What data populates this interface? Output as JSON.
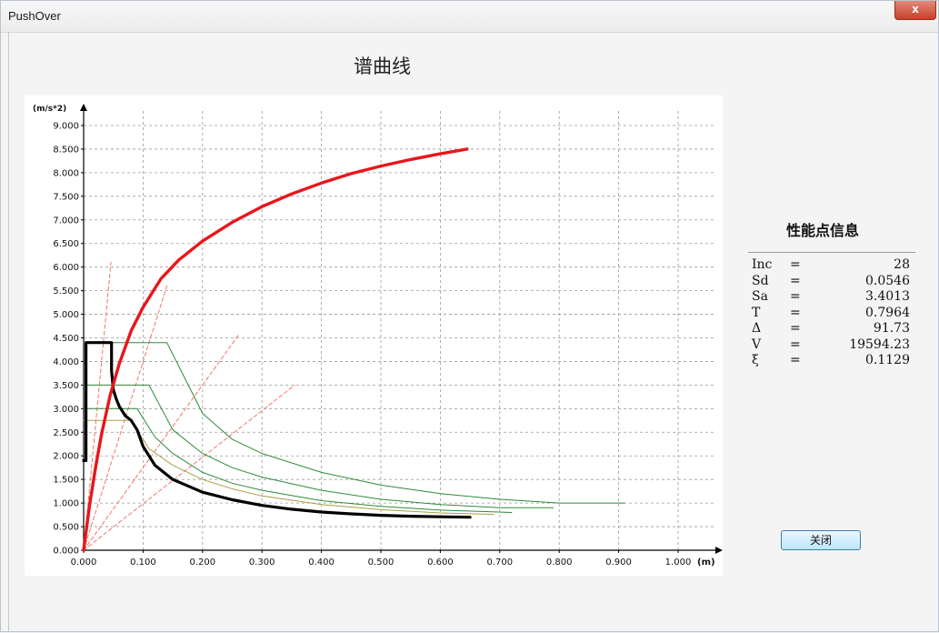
{
  "window": {
    "title": "PushOver",
    "close_glyph": "x"
  },
  "chart_title": "谱曲线",
  "info_panel": {
    "title": "性能点信息",
    "rows": [
      {
        "label": "Inc",
        "eq": "=",
        "value": "28"
      },
      {
        "label": "Sd",
        "eq": "=",
        "value": "0.0546"
      },
      {
        "label": "Sa",
        "eq": "=",
        "value": "3.4013"
      },
      {
        "label": "T",
        "eq": "=",
        "value": "0.7964"
      },
      {
        "label": "Δ",
        "eq": "=",
        "value": "91.73"
      },
      {
        "label": "V",
        "eq": "=",
        "value": "19594.23"
      },
      {
        "label": "ξ",
        "eq": "=",
        "value": "0.1129"
      }
    ]
  },
  "close_button_label": "关闭",
  "chart_data": {
    "type": "line",
    "title": "",
    "xlabel": "(m)",
    "ylabel": "(m/s*2)",
    "xlim": [
      0,
      1.0
    ],
    "ylim": [
      0,
      9.0
    ],
    "x_ticks": [
      "0.000",
      "0.100",
      "0.200",
      "0.300",
      "0.400",
      "0.500",
      "0.600",
      "0.700",
      "0.800",
      "0.900",
      "1.000"
    ],
    "y_ticks": [
      "0.000",
      "0.500",
      "1.000",
      "1.500",
      "2.000",
      "2.500",
      "3.000",
      "3.500",
      "4.000",
      "4.500",
      "5.000",
      "5.500",
      "6.000",
      "6.500",
      "7.000",
      "7.500",
      "8.000",
      "8.500",
      "9.000"
    ],
    "grid": true,
    "colors": {
      "capacity": "#e8161b",
      "demand": "#000000",
      "reduced": "#2f8a3a",
      "reduced_alt": "#a7a044",
      "period_lines": "#f0766c"
    },
    "series": [
      {
        "role": "capacity",
        "x": [
          0,
          0.01,
          0.02,
          0.03,
          0.045,
          0.06,
          0.08,
          0.1,
          0.13,
          0.16,
          0.2,
          0.25,
          0.3,
          0.35,
          0.4,
          0.45,
          0.5,
          0.55,
          0.6,
          0.645
        ],
        "y": [
          0,
          0.95,
          1.75,
          2.45,
          3.3,
          3.95,
          4.65,
          5.15,
          5.75,
          6.15,
          6.55,
          6.95,
          7.28,
          7.55,
          7.78,
          7.98,
          8.14,
          8.28,
          8.4,
          8.5
        ]
      },
      {
        "role": "demand",
        "x": [
          0,
          0.004,
          0.004,
          0.047,
          0.047,
          0.05,
          0.055,
          0.06,
          0.065,
          0.07,
          0.075,
          0.08,
          0.09,
          0.1,
          0.12,
          0.15,
          0.2,
          0.25,
          0.3,
          0.35,
          0.4,
          0.45,
          0.5,
          0.55,
          0.6,
          0.65
        ],
        "y": [
          1.9,
          1.9,
          4.4,
          4.4,
          3.8,
          3.4,
          3.2,
          3.05,
          2.95,
          2.85,
          2.8,
          2.75,
          2.55,
          2.2,
          1.8,
          1.5,
          1.23,
          1.07,
          0.95,
          0.87,
          0.81,
          0.77,
          0.74,
          0.72,
          0.71,
          0.7
        ]
      },
      {
        "role": "reduced",
        "x": [
          0,
          0.14,
          0.2,
          0.25,
          0.3,
          0.4,
          0.5,
          0.6,
          0.7,
          0.8,
          0.91
        ],
        "y": [
          4.4,
          4.4,
          2.9,
          2.35,
          2.05,
          1.65,
          1.38,
          1.2,
          1.08,
          1.0,
          1.0
        ]
      },
      {
        "role": "reduced",
        "x": [
          0,
          0.11,
          0.15,
          0.2,
          0.25,
          0.3,
          0.4,
          0.5,
          0.6,
          0.7,
          0.79
        ],
        "y": [
          3.5,
          3.5,
          2.55,
          2.05,
          1.75,
          1.55,
          1.27,
          1.08,
          0.97,
          0.9,
          0.9
        ]
      },
      {
        "role": "reduced",
        "x": [
          0,
          0.09,
          0.12,
          0.15,
          0.2,
          0.25,
          0.3,
          0.4,
          0.5,
          0.6,
          0.72
        ],
        "y": [
          3.0,
          3.0,
          2.4,
          2.05,
          1.65,
          1.42,
          1.27,
          1.05,
          0.93,
          0.85,
          0.8
        ]
      },
      {
        "role": "reduced_alt",
        "x": [
          0,
          0.08,
          0.11,
          0.15,
          0.2,
          0.25,
          0.3,
          0.4,
          0.5,
          0.6,
          0.69
        ],
        "y": [
          2.75,
          2.75,
          2.15,
          1.8,
          1.5,
          1.3,
          1.15,
          0.97,
          0.86,
          0.79,
          0.76
        ]
      },
      {
        "role": "period_lines",
        "x": [
          0,
          0.046
        ],
        "y": [
          0,
          6.1
        ]
      },
      {
        "role": "period_lines",
        "x": [
          0,
          0.14
        ],
        "y": [
          0,
          5.6
        ]
      },
      {
        "role": "period_lines",
        "x": [
          0,
          0.26
        ],
        "y": [
          0,
          4.55
        ]
      },
      {
        "role": "period_lines",
        "x": [
          0,
          0.355
        ],
        "y": [
          0,
          3.5
        ]
      }
    ]
  }
}
